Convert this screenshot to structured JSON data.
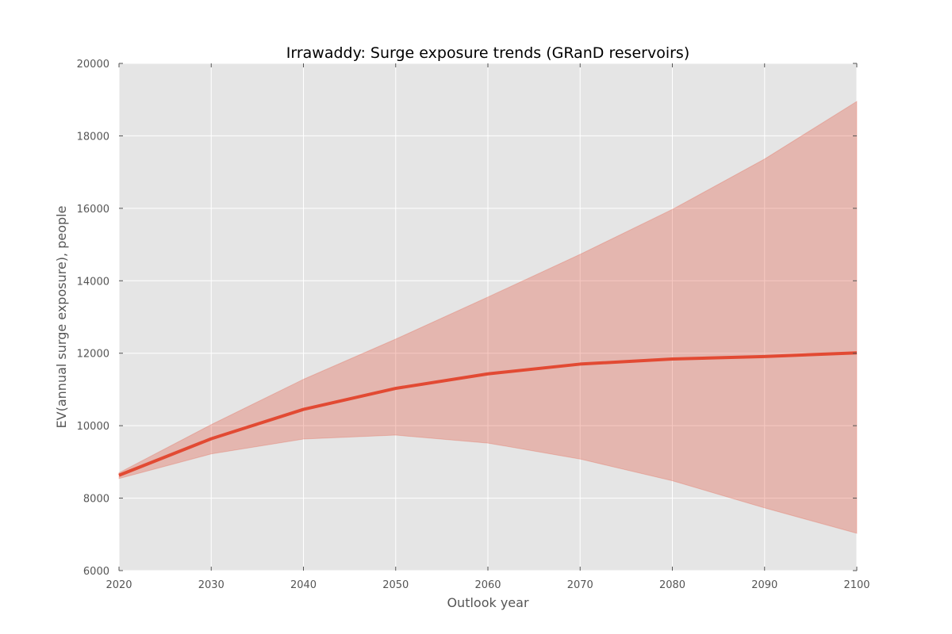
{
  "chart_data": {
    "type": "line",
    "title": "Irrawaddy: Surge exposure trends (GRanD reservoirs)",
    "xlabel": "Outlook year",
    "ylabel": "EV(annual surge exposure), people",
    "x": [
      2020,
      2030,
      2040,
      2050,
      2060,
      2070,
      2080,
      2090,
      2100
    ],
    "xlim": [
      2020,
      2100
    ],
    "ylim": [
      6000,
      20000
    ],
    "xticks": [
      2020,
      2030,
      2040,
      2050,
      2060,
      2070,
      2080,
      2090,
      2100
    ],
    "yticks": [
      6000,
      8000,
      10000,
      12000,
      14000,
      16000,
      18000,
      20000
    ],
    "grid": true,
    "series": [
      {
        "values": [
          8630,
          9640,
          10450,
          11030,
          11430,
          11700,
          11840,
          11910,
          12010
        ],
        "color": "#e24a33"
      }
    ],
    "band": {
      "lower": [
        8540,
        9220,
        9630,
        9740,
        9520,
        9080,
        8480,
        7730,
        7030
      ],
      "upper": [
        8700,
        10030,
        11280,
        12390,
        13550,
        14730,
        15970,
        17360,
        18950
      ],
      "color": "#e24a33"
    },
    "colors": {
      "plot_bg": "#e5e5e5",
      "grid": "#ffffff",
      "tick_text": "#555555"
    }
  }
}
